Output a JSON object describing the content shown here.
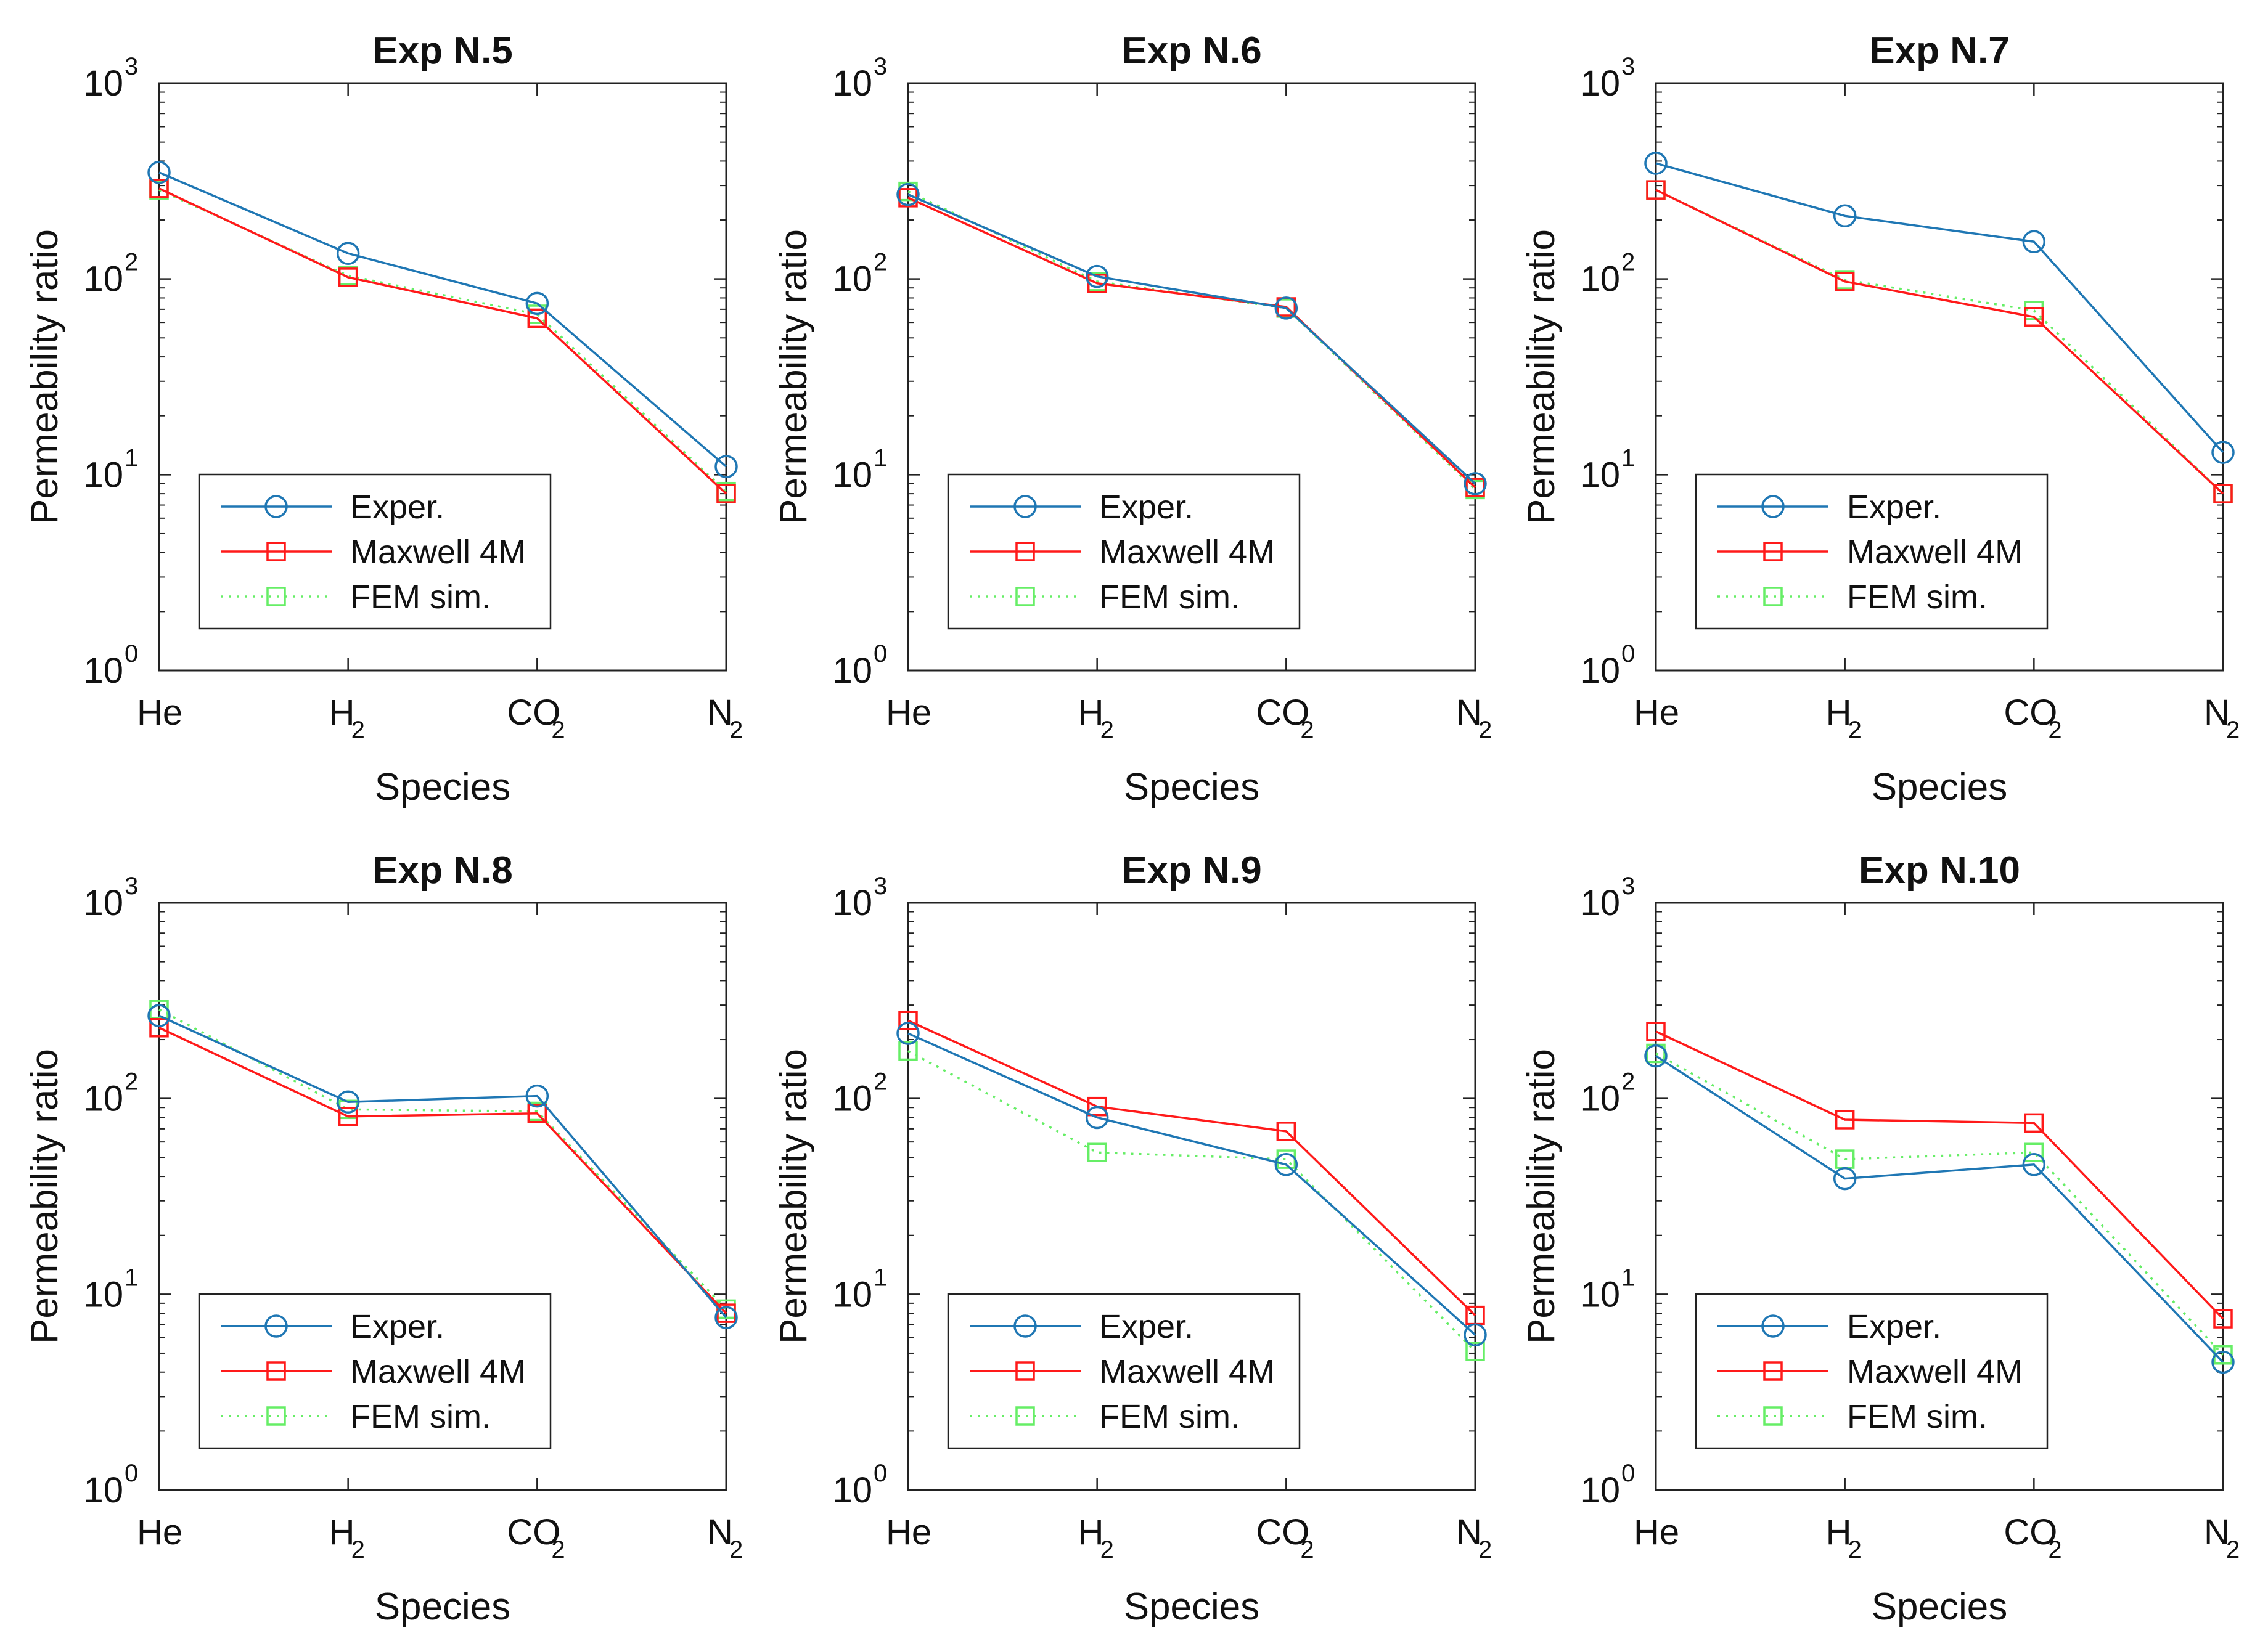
{
  "chart_data": [
    {
      "type": "line",
      "title": "Exp N.5",
      "xlabel": "Species",
      "ylabel": "Permeability ratio",
      "yscale": "log",
      "ylim": [
        1,
        1000
      ],
      "categories": [
        {
          "base": "He",
          "sub": ""
        },
        {
          "base": "H",
          "sub": "2"
        },
        {
          "base": "CO",
          "sub": "2"
        },
        {
          "base": "N",
          "sub": "2"
        }
      ],
      "yticks": [
        {
          "base": "10",
          "exp": "0"
        },
        {
          "base": "10",
          "exp": "1"
        },
        {
          "base": "10",
          "exp": "2"
        },
        {
          "base": "10",
          "exp": "3"
        }
      ],
      "series": [
        {
          "name": "Exper.",
          "marker": "circle",
          "style": "solid",
          "color": "#1f77b4",
          "values": [
            350,
            135,
            75,
            11
          ]
        },
        {
          "name": "Maxwell 4M",
          "marker": "square",
          "style": "solid",
          "color": "#ff1a1a",
          "values": [
            290,
            102,
            63,
            8
          ]
        },
        {
          "name": "FEM sim.",
          "marker": "square",
          "style": "dotted",
          "color": "#66ee66",
          "values": [
            285,
            104,
            66,
            8.2
          ]
        }
      ]
    },
    {
      "type": "line",
      "title": "Exp N.6",
      "xlabel": "Species",
      "ylabel": "Permeability ratio",
      "yscale": "log",
      "ylim": [
        1,
        1000
      ],
      "categories": [
        {
          "base": "He",
          "sub": ""
        },
        {
          "base": "H",
          "sub": "2"
        },
        {
          "base": "CO",
          "sub": "2"
        },
        {
          "base": "N",
          "sub": "2"
        }
      ],
      "yticks": [
        {
          "base": "10",
          "exp": "0"
        },
        {
          "base": "10",
          "exp": "1"
        },
        {
          "base": "10",
          "exp": "2"
        },
        {
          "base": "10",
          "exp": "3"
        }
      ],
      "series": [
        {
          "name": "Exper.",
          "marker": "circle",
          "style": "solid",
          "color": "#1f77b4",
          "values": [
            270,
            103,
            71,
            9
          ]
        },
        {
          "name": "Maxwell 4M",
          "marker": "square",
          "style": "solid",
          "color": "#ff1a1a",
          "values": [
            260,
            95,
            72,
            8.6
          ]
        },
        {
          "name": "FEM sim.",
          "marker": "square",
          "style": "dotted",
          "color": "#66ee66",
          "values": [
            280,
            97,
            71,
            8.4
          ]
        }
      ]
    },
    {
      "type": "line",
      "title": "Exp N.7",
      "xlabel": "Species",
      "ylabel": "Permeability ratio",
      "yscale": "log",
      "ylim": [
        1,
        1000
      ],
      "categories": [
        {
          "base": "He",
          "sub": ""
        },
        {
          "base": "H",
          "sub": "2"
        },
        {
          "base": "CO",
          "sub": "2"
        },
        {
          "base": "N",
          "sub": "2"
        }
      ],
      "yticks": [
        {
          "base": "10",
          "exp": "0"
        },
        {
          "base": "10",
          "exp": "1"
        },
        {
          "base": "10",
          "exp": "2"
        },
        {
          "base": "10",
          "exp": "3"
        }
      ],
      "series": [
        {
          "name": "Exper.",
          "marker": "circle",
          "style": "solid",
          "color": "#1f77b4",
          "values": [
            390,
            210,
            155,
            13
          ]
        },
        {
          "name": "Maxwell 4M",
          "marker": "square",
          "style": "solid",
          "color": "#ff1a1a",
          "values": [
            285,
            97,
            64,
            8
          ]
        },
        {
          "name": "FEM sim.",
          "marker": "square",
          "style": "dotted",
          "color": "#66ee66",
          "values": [
            285,
            99,
            69,
            8
          ]
        }
      ]
    },
    {
      "type": "line",
      "title": "Exp N.8",
      "xlabel": "Species",
      "ylabel": "Permeability ratio",
      "yscale": "log",
      "ylim": [
        1,
        1000
      ],
      "categories": [
        {
          "base": "He",
          "sub": ""
        },
        {
          "base": "H",
          "sub": "2"
        },
        {
          "base": "CO",
          "sub": "2"
        },
        {
          "base": "N",
          "sub": "2"
        }
      ],
      "yticks": [
        {
          "base": "10",
          "exp": "0"
        },
        {
          "base": "10",
          "exp": "1"
        },
        {
          "base": "10",
          "exp": "2"
        },
        {
          "base": "10",
          "exp": "3"
        }
      ],
      "series": [
        {
          "name": "Exper.",
          "marker": "circle",
          "style": "solid",
          "color": "#1f77b4",
          "values": [
            265,
            96,
            103,
            7.6
          ]
        },
        {
          "name": "Maxwell 4M",
          "marker": "square",
          "style": "solid",
          "color": "#ff1a1a",
          "values": [
            230,
            81,
            84,
            8
          ]
        },
        {
          "name": "FEM sim.",
          "marker": "square",
          "style": "dotted",
          "color": "#66ee66",
          "values": [
            285,
            88,
            86,
            8.4
          ]
        }
      ]
    },
    {
      "type": "line",
      "title": "Exp N.9",
      "xlabel": "Species",
      "ylabel": "Permeability ratio",
      "yscale": "log",
      "ylim": [
        1,
        1000
      ],
      "categories": [
        {
          "base": "He",
          "sub": ""
        },
        {
          "base": "H",
          "sub": "2"
        },
        {
          "base": "CO",
          "sub": "2"
        },
        {
          "base": "N",
          "sub": "2"
        }
      ],
      "yticks": [
        {
          "base": "10",
          "exp": "0"
        },
        {
          "base": "10",
          "exp": "1"
        },
        {
          "base": "10",
          "exp": "2"
        },
        {
          "base": "10",
          "exp": "3"
        }
      ],
      "series": [
        {
          "name": "Exper.",
          "marker": "circle",
          "style": "solid",
          "color": "#1f77b4",
          "values": [
            215,
            80,
            46,
            6.2
          ]
        },
        {
          "name": "Maxwell 4M",
          "marker": "square",
          "style": "solid",
          "color": "#ff1a1a",
          "values": [
            250,
            91,
            68,
            7.8
          ]
        },
        {
          "name": "FEM sim.",
          "marker": "square",
          "style": "dotted",
          "color": "#66ee66",
          "values": [
            175,
            53,
            49,
            5.1
          ]
        }
      ]
    },
    {
      "type": "line",
      "title": "Exp N.10",
      "xlabel": "Species",
      "ylabel": "Permeability ratio",
      "yscale": "log",
      "ylim": [
        1,
        1000
      ],
      "categories": [
        {
          "base": "He",
          "sub": ""
        },
        {
          "base": "H",
          "sub": "2"
        },
        {
          "base": "CO",
          "sub": "2"
        },
        {
          "base": "N",
          "sub": "2"
        }
      ],
      "yticks": [
        {
          "base": "10",
          "exp": "0"
        },
        {
          "base": "10",
          "exp": "1"
        },
        {
          "base": "10",
          "exp": "2"
        },
        {
          "base": "10",
          "exp": "3"
        }
      ],
      "series": [
        {
          "name": "Exper.",
          "marker": "circle",
          "style": "solid",
          "color": "#1f77b4",
          "values": [
            165,
            39,
            46,
            4.5
          ]
        },
        {
          "name": "Maxwell 4M",
          "marker": "square",
          "style": "solid",
          "color": "#ff1a1a",
          "values": [
            220,
            78,
            75,
            7.5
          ]
        },
        {
          "name": "FEM sim.",
          "marker": "square",
          "style": "dotted",
          "color": "#66ee66",
          "values": [
            170,
            49,
            53,
            4.9
          ]
        }
      ]
    }
  ]
}
